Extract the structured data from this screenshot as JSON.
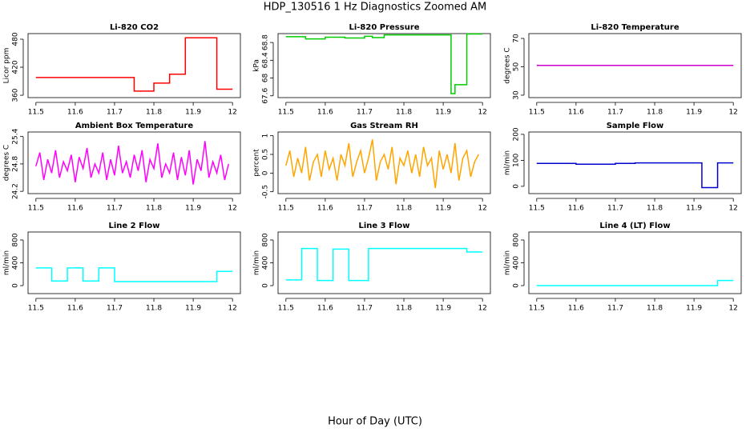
{
  "title": "HDP_130516  1 Hz Diagnostics Zoomed AM",
  "xlabel": "Hour of Day (UTC)",
  "chart_data": [
    {
      "type": "line",
      "title": "Li-820 CO2",
      "ylabel": "Licor ppm",
      "x": [
        11.5,
        11.75,
        11.75,
        11.8,
        11.8,
        11.84,
        11.84,
        11.88,
        11.88,
        11.96,
        11.96,
        12.0
      ],
      "series": [
        {
          "color": "#ff0000",
          "values": [
            398,
            398,
            369,
            369,
            386,
            386,
            405,
            405,
            483,
            483,
            373,
            373
          ]
        }
      ],
      "xlim": [
        11.48,
        12.02
      ],
      "ylim": [
        355,
        492
      ],
      "xticks": [
        11.5,
        11.6,
        11.7,
        11.8,
        11.9,
        12.0
      ],
      "yticks": [
        360,
        420,
        480
      ]
    },
    {
      "type": "line",
      "title": "Li-820 Pressure",
      "ylabel": "kPa",
      "x": [
        11.5,
        11.55,
        11.55,
        11.6,
        11.6,
        11.65,
        11.65,
        11.7,
        11.7,
        11.72,
        11.72,
        11.75,
        11.75,
        11.92,
        11.92,
        11.93,
        11.93,
        11.96,
        11.96,
        12.0
      ],
      "series": [
        {
          "color": "#00cc00",
          "values": [
            68.93,
            68.93,
            68.88,
            68.88,
            68.92,
            68.92,
            68.9,
            68.9,
            68.94,
            68.94,
            68.91,
            68.91,
            68.97,
            68.97,
            67.65,
            67.65,
            67.85,
            67.85,
            68.99,
            68.99
          ]
        }
      ],
      "xlim": [
        11.48,
        12.02
      ],
      "ylim": [
        67.56,
        69.0
      ],
      "xticks": [
        11.5,
        11.6,
        11.7,
        11.8,
        11.9,
        12.0
      ],
      "yticks": [
        67.6,
        68.0,
        68.4,
        68.8
      ]
    },
    {
      "type": "line",
      "title": "Li-820 Temperature",
      "ylabel": "degrees C",
      "x": [
        11.5,
        12.0
      ],
      "series": [
        {
          "color": "#cc00cc",
          "values": [
            51,
            51
          ]
        }
      ],
      "xlim": [
        11.48,
        12.02
      ],
      "ylim": [
        28.3,
        73.4
      ],
      "xticks": [
        11.5,
        11.6,
        11.7,
        11.8,
        11.9,
        12.0
      ],
      "yticks": [
        30,
        50,
        70
      ]
    },
    {
      "type": "line",
      "title": "Ambient Box Temperature",
      "ylabel": "degrees C",
      "x": [
        11.5,
        11.51,
        11.52,
        11.53,
        11.54,
        11.55,
        11.56,
        11.57,
        11.58,
        11.59,
        11.6,
        11.61,
        11.62,
        11.63,
        11.64,
        11.65,
        11.66,
        11.67,
        11.68,
        11.69,
        11.7,
        11.71,
        11.72,
        11.73,
        11.74,
        11.75,
        11.76,
        11.77,
        11.78,
        11.79,
        11.8,
        11.81,
        11.82,
        11.83,
        11.84,
        11.85,
        11.86,
        11.87,
        11.88,
        11.89,
        11.9,
        11.91,
        11.92,
        11.93,
        11.94,
        11.95,
        11.96,
        11.97,
        11.98,
        11.99
      ],
      "series": [
        {
          "color": "#ff00ff",
          "values": [
            24.75,
            25.05,
            24.45,
            24.9,
            24.6,
            25.1,
            24.5,
            24.85,
            24.65,
            25.0,
            24.4,
            24.95,
            24.7,
            25.15,
            24.5,
            24.8,
            24.6,
            25.05,
            24.45,
            24.9,
            24.55,
            25.2,
            24.6,
            24.85,
            24.5,
            25.0,
            24.65,
            25.1,
            24.4,
            24.9,
            24.7,
            25.25,
            24.5,
            24.8,
            24.6,
            25.05,
            24.45,
            24.95,
            24.55,
            25.1,
            24.35,
            24.9,
            24.65,
            25.3,
            24.5,
            24.85,
            24.6,
            25.0,
            24.45,
            24.8
          ]
        }
      ],
      "xlim": [
        11.48,
        12.02
      ],
      "ylim": [
        24.15,
        25.5
      ],
      "xticks": [
        11.5,
        11.6,
        11.7,
        11.8,
        11.9,
        12.0
      ],
      "yticks": [
        24.2,
        24.8,
        25.4
      ]
    },
    {
      "type": "line",
      "title": "Gas Stream RH",
      "ylabel": "percent",
      "x": [
        11.5,
        11.51,
        11.52,
        11.53,
        11.54,
        11.55,
        11.56,
        11.57,
        11.58,
        11.59,
        11.6,
        11.61,
        11.62,
        11.63,
        11.64,
        11.65,
        11.66,
        11.67,
        11.68,
        11.69,
        11.7,
        11.71,
        11.72,
        11.73,
        11.74,
        11.75,
        11.76,
        11.77,
        11.78,
        11.79,
        11.8,
        11.81,
        11.82,
        11.83,
        11.84,
        11.85,
        11.86,
        11.87,
        11.88,
        11.89,
        11.9,
        11.91,
        11.92,
        11.93,
        11.94,
        11.95,
        11.96,
        11.97,
        11.98,
        11.99
      ],
      "series": [
        {
          "color": "#ffa500",
          "values": [
            0.2,
            0.6,
            -0.1,
            0.4,
            0.0,
            0.7,
            -0.2,
            0.3,
            0.5,
            -0.1,
            0.6,
            0.1,
            0.4,
            -0.2,
            0.5,
            0.2,
            0.8,
            -0.1,
            0.3,
            0.6,
            0.0,
            0.4,
            0.9,
            -0.2,
            0.3,
            0.5,
            0.1,
            0.7,
            -0.3,
            0.4,
            0.2,
            0.6,
            0.0,
            0.5,
            -0.1,
            0.7,
            0.2,
            0.4,
            -0.4,
            0.6,
            0.1,
            0.5,
            0.0,
            0.8,
            -0.2,
            0.4,
            0.6,
            -0.1,
            0.3,
            0.5
          ]
        }
      ],
      "xlim": [
        11.48,
        12.02
      ],
      "ylim": [
        -0.55,
        1.1
      ],
      "xticks": [
        11.5,
        11.6,
        11.7,
        11.8,
        11.9,
        12.0
      ],
      "yticks": [
        -0.5,
        0.0,
        0.5,
        1.0
      ]
    },
    {
      "type": "line",
      "title": "Sample Flow",
      "ylabel": "ml/min",
      "x": [
        11.5,
        11.6,
        11.6,
        11.7,
        11.7,
        11.75,
        11.75,
        11.92,
        11.92,
        11.96,
        11.96,
        12.0
      ],
      "series": [
        {
          "color": "#0000cc",
          "values": [
            88,
            88,
            85,
            85,
            88,
            88,
            90,
            90,
            -5,
            -5,
            90,
            90
          ]
        }
      ],
      "xlim": [
        11.48,
        12.02
      ],
      "ylim": [
        -28,
        209
      ],
      "xticks": [
        11.5,
        11.6,
        11.7,
        11.8,
        11.9,
        12.0
      ],
      "yticks": [
        0,
        100,
        200
      ]
    },
    {
      "type": "line",
      "title": "Line 2 Flow",
      "ylabel": "ml/min",
      "x": [
        11.5,
        11.54,
        11.54,
        11.58,
        11.58,
        11.62,
        11.62,
        11.66,
        11.66,
        11.7,
        11.7,
        11.96,
        11.96,
        12.0
      ],
      "series": [
        {
          "color": "#00ffff",
          "values": [
            310,
            310,
            80,
            80,
            310,
            310,
            80,
            80,
            310,
            310,
            70,
            70,
            250,
            250
          ]
        }
      ],
      "xlim": [
        11.48,
        12.02
      ],
      "ylim": [
        -140,
        940
      ],
      "xticks": [
        11.5,
        11.6,
        11.7,
        11.8,
        11.9,
        12.0
      ],
      "yticks": [
        0,
        400,
        800
      ]
    },
    {
      "type": "line",
      "title": "Line 3 Flow",
      "ylabel": "ml/min",
      "x": [
        11.5,
        11.54,
        11.54,
        11.58,
        11.58,
        11.62,
        11.62,
        11.66,
        11.66,
        11.71,
        11.71,
        11.96,
        11.96,
        12.0
      ],
      "series": [
        {
          "color": "#00ffff",
          "values": [
            100,
            100,
            650,
            650,
            90,
            90,
            640,
            640,
            90,
            90,
            650,
            650,
            590,
            590
          ]
        }
      ],
      "xlim": [
        11.48,
        12.02
      ],
      "ylim": [
        -140,
        940
      ],
      "xticks": [
        11.5,
        11.6,
        11.7,
        11.8,
        11.9,
        12.0
      ],
      "yticks": [
        0,
        400,
        800
      ]
    },
    {
      "type": "line",
      "title": "Line 4 (LT) Flow",
      "ylabel": "ml/min",
      "x": [
        11.5,
        11.96,
        11.96,
        12.0
      ],
      "series": [
        {
          "color": "#00ffff",
          "values": [
            0,
            0,
            90,
            90
          ]
        }
      ],
      "xlim": [
        11.48,
        12.02
      ],
      "ylim": [
        -140,
        940
      ],
      "xticks": [
        11.5,
        11.6,
        11.7,
        11.8,
        11.9,
        12.0
      ],
      "yticks": [
        0,
        400,
        800
      ]
    }
  ]
}
